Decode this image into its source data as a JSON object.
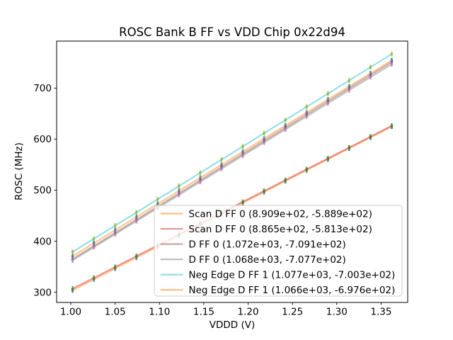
{
  "figure": {
    "title": "ROSC Bank B FF vs VDD Chip 0x22d94",
    "xlabel": "VDDD (V)",
    "ylabel": "ROSC (MHz)"
  },
  "chart_data": {
    "type": "scatter",
    "title": "ROSC Bank B FF vs VDD Chip 0x22d94",
    "xlabel": "VDDD (V)",
    "ylabel": "ROSC (MHz)",
    "xlim": [
      0.984,
      1.38
    ],
    "ylim": [
      280,
      792
    ],
    "grid": false,
    "legend_position": "lower right",
    "xtick_values": [
      1.0,
      1.05,
      1.1,
      1.15,
      1.2,
      1.25,
      1.3,
      1.35
    ],
    "xtick_labels": [
      "1.00",
      "1.05",
      "1.10",
      "1.15",
      "1.20",
      "1.25",
      "1.30",
      "1.35"
    ],
    "ytick_values": [
      300,
      400,
      500,
      600,
      700
    ],
    "ytick_labels": [
      "300",
      "400",
      "500",
      "600",
      "700"
    ],
    "x": [
      1.002,
      1.026,
      1.05,
      1.074,
      1.098,
      1.122,
      1.146,
      1.17,
      1.194,
      1.218,
      1.242,
      1.266,
      1.29,
      1.314,
      1.338,
      1.362
    ],
    "yerr": 4,
    "series": [
      {
        "label": "Scan D FF 0 (8.909e+02, -5.889e+02)",
        "fit_slope": 890.9,
        "fit_intercept": -588.9,
        "marker_color": "#1f77b4",
        "line_color": "#ff7f0e",
        "line_alpha": 0.5,
        "y": [
          303.8,
          325.2,
          346.5,
          367.9,
          389.3,
          410.7,
          432.1,
          453.5,
          474.8,
          496.2,
          517.6,
          539.0,
          560.4,
          581.7,
          603.1,
          624.5
        ]
      },
      {
        "label": "Scan D FF 0 (8.865e+02, -5.813e+02)",
        "fit_slope": 886.5,
        "fit_intercept": -581.3,
        "marker_color": "#2ca02c",
        "line_color": "#d62728",
        "line_alpha": 0.5,
        "y": [
          307.0,
          328.2,
          349.5,
          370.8,
          392.1,
          413.3,
          434.6,
          455.9,
          477.2,
          498.4,
          519.7,
          541.0,
          562.2,
          583.5,
          604.8,
          626.1
        ]
      },
      {
        "label": "D FF 0 (1.072e+03, -7.091e+02)",
        "fit_slope": 1072,
        "fit_intercept": -709.1,
        "marker_color": "#9467bd",
        "line_color": "#8c564b",
        "line_alpha": 0.5,
        "y": [
          365.0,
          390.8,
          416.5,
          442.2,
          468.0,
          493.7,
          519.4,
          545.2,
          570.9,
          596.6,
          622.4,
          648.1,
          673.8,
          699.6,
          725.3,
          751.0
        ]
      },
      {
        "label": "D FF 0 (1.068e+03, -7.077e+02)",
        "fit_slope": 1068,
        "fit_intercept": -707.7,
        "marker_color": "#e377c2",
        "line_color": "#7f7f7f",
        "line_alpha": 0.5,
        "y": [
          362.4,
          388.1,
          413.7,
          439.3,
          465.0,
          490.6,
          516.2,
          541.9,
          567.5,
          593.1,
          618.8,
          644.4,
          670.0,
          695.7,
          721.3,
          746.9
        ]
      },
      {
        "label": "Neg Edge D FF 1 (1.077e+03, -7.003e+02)",
        "fit_slope": 1077,
        "fit_intercept": -700.3,
        "marker_color": "#bcbd22",
        "line_color": "#17becf",
        "line_alpha": 0.5,
        "y": [
          378.9,
          404.7,
          430.5,
          456.4,
          482.2,
          508.1,
          533.9,
          559.8,
          585.6,
          611.5,
          637.3,
          663.2,
          689.0,
          714.9,
          740.7,
          766.6
        ]
      },
      {
        "label": "Neg Edge D FF 1 (1.066e+03, -6.976e+02)",
        "fit_slope": 1066,
        "fit_intercept": -697.6,
        "marker_color": "#1f77b4",
        "line_color": "#ff7f0e",
        "line_alpha": 0.5,
        "y": [
          370.5,
          396.1,
          421.7,
          447.3,
          472.9,
          498.5,
          524.0,
          549.6,
          575.2,
          600.8,
          626.4,
          651.9,
          677.5,
          703.1,
          728.7,
          754.3
        ]
      }
    ]
  }
}
